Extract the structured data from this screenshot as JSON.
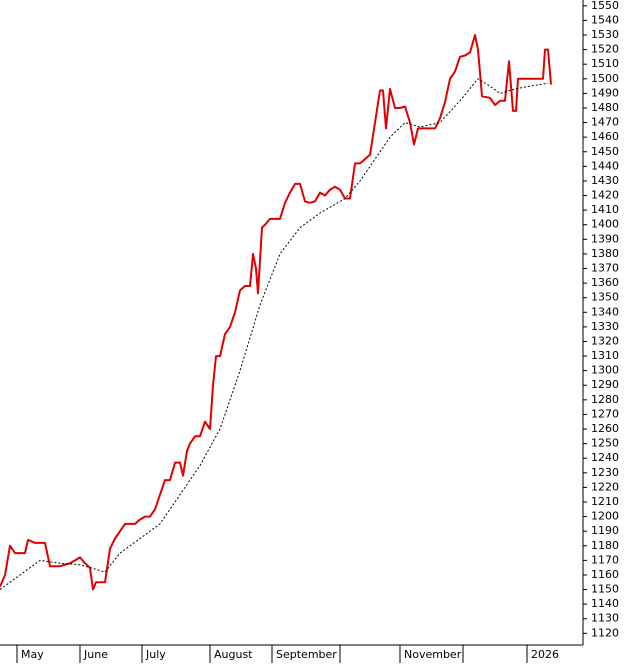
{
  "chart_data": {
    "type": "line",
    "xlim": [
      0,
      583
    ],
    "ylim": [
      1112,
      1554
    ],
    "yticks": [
      1120,
      1130,
      1140,
      1150,
      1160,
      1170,
      1180,
      1190,
      1200,
      1210,
      1220,
      1230,
      1240,
      1250,
      1260,
      1270,
      1280,
      1290,
      1300,
      1310,
      1320,
      1330,
      1340,
      1350,
      1360,
      1370,
      1380,
      1390,
      1400,
      1410,
      1420,
      1430,
      1440,
      1450,
      1460,
      1470,
      1480,
      1490,
      1500,
      1510,
      1520,
      1530,
      1540,
      1550
    ],
    "xticks": [
      {
        "value": 17,
        "label": "May"
      },
      {
        "value": 80,
        "label": "June"
      },
      {
        "value": 142,
        "label": "July"
      },
      {
        "value": 210,
        "label": "August"
      },
      {
        "value": 272,
        "label": "September"
      },
      {
        "value": 340,
        "label": null
      },
      {
        "value": 400,
        "label": "November"
      },
      {
        "value": 463,
        "label": null
      },
      {
        "value": 527,
        "label": "2026"
      }
    ],
    "series": [
      {
        "color": "#e00000",
        "style": "solid",
        "x": [
          0,
          5,
          10,
          15,
          20,
          25,
          28,
          35,
          40,
          45,
          50,
          55,
          60,
          65,
          70,
          75,
          80,
          85,
          90,
          93,
          96,
          105,
          110,
          115,
          120,
          125,
          130,
          135,
          140,
          145,
          150,
          155,
          160,
          165,
          170,
          175,
          180,
          183,
          187,
          190,
          195,
          200,
          205,
          210,
          213,
          216,
          220,
          225,
          230,
          235,
          240,
          245,
          250,
          253,
          256,
          258,
          262,
          265,
          270,
          275,
          280,
          285,
          290,
          295,
          300,
          305,
          310,
          315,
          320,
          325,
          330,
          335,
          340,
          345,
          350,
          355,
          360,
          365,
          370,
          375,
          380,
          383,
          386,
          390,
          395,
          400,
          405,
          410,
          414,
          418,
          425,
          430,
          435,
          440,
          445,
          450,
          455,
          460,
          465,
          470,
          475,
          478,
          482,
          490,
          495,
          500,
          505,
          509,
          513,
          516,
          518,
          525,
          530,
          535,
          540,
          543,
          545,
          548,
          551
        ],
        "values": [
          1152,
          1160,
          1180,
          1175,
          1175,
          1175,
          1184,
          1182,
          1182,
          1182,
          1166,
          1166,
          1166,
          1167,
          1168,
          1170,
          1172,
          1168,
          1165,
          1150,
          1155,
          1155,
          1178,
          1185,
          1190,
          1195,
          1195,
          1195,
          1198,
          1200,
          1200,
          1205,
          1215,
          1225,
          1225,
          1237,
          1237,
          1228,
          1245,
          1250,
          1255,
          1255,
          1265,
          1260,
          1290,
          1310,
          1310,
          1325,
          1330,
          1340,
          1355,
          1358,
          1358,
          1380,
          1370,
          1353,
          1398,
          1400,
          1404,
          1404,
          1404,
          1415,
          1422,
          1428,
          1428,
          1416,
          1415,
          1416,
          1422,
          1420,
          1424,
          1426,
          1424,
          1418,
          1418,
          1442,
          1442,
          1445,
          1448,
          1470,
          1492,
          1492,
          1466,
          1493,
          1480,
          1480,
          1481,
          1470,
          1455,
          1466,
          1466,
          1466,
          1466,
          1473,
          1484,
          1500,
          1505,
          1515,
          1516,
          1518,
          1530,
          1520,
          1488,
          1487,
          1482,
          1485,
          1485,
          1512,
          1478,
          1478,
          1500,
          1500,
          1500,
          1500,
          1500,
          1500,
          1520,
          1520,
          1496
        ]
      },
      {
        "color": "#000000",
        "style": "dotted",
        "x": [
          0,
          20,
          40,
          60,
          80,
          105,
          120,
          140,
          160,
          180,
          200,
          220,
          240,
          260,
          280,
          300,
          320,
          345,
          360,
          375,
          390,
          405,
          420,
          440,
          460,
          478,
          490,
          500,
          515,
          530,
          548
        ],
        "values": [
          1150,
          1160,
          1170,
          1168,
          1167,
          1162,
          1175,
          1185,
          1195,
          1215,
          1235,
          1260,
          1300,
          1345,
          1380,
          1398,
          1408,
          1418,
          1430,
          1445,
          1460,
          1470,
          1467,
          1470,
          1485,
          1500,
          1495,
          1490,
          1493,
          1495,
          1497
        ]
      }
    ]
  }
}
